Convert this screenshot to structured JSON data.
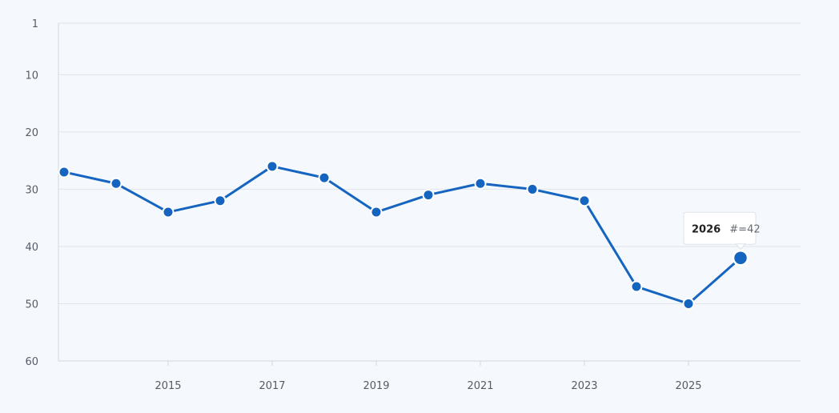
{
  "chart_data": {
    "type": "line",
    "title": "",
    "xlabel": "",
    "ylabel": "",
    "x": [
      2013,
      2014,
      2015,
      2016,
      2017,
      2018,
      2019,
      2020,
      2021,
      2022,
      2023,
      2024,
      2025,
      2026
    ],
    "series": [
      {
        "values": [
          27,
          29,
          34,
          32,
          26,
          28,
          34,
          31,
          29,
          30,
          32,
          47,
          50,
          42
        ],
        "color": "#1565c0"
      }
    ],
    "x_ticks": [
      "2015",
      "2017",
      "2019",
      "2021",
      "2023",
      "2025"
    ],
    "y_ticks": [
      "1",
      "10",
      "20",
      "30",
      "40",
      "50",
      "60"
    ],
    "ylim": [
      1,
      60
    ],
    "y_inverted": true,
    "grid": true,
    "legend": "none",
    "tooltip": {
      "year": "2026",
      "text": "#=42",
      "x": 2026
    }
  }
}
